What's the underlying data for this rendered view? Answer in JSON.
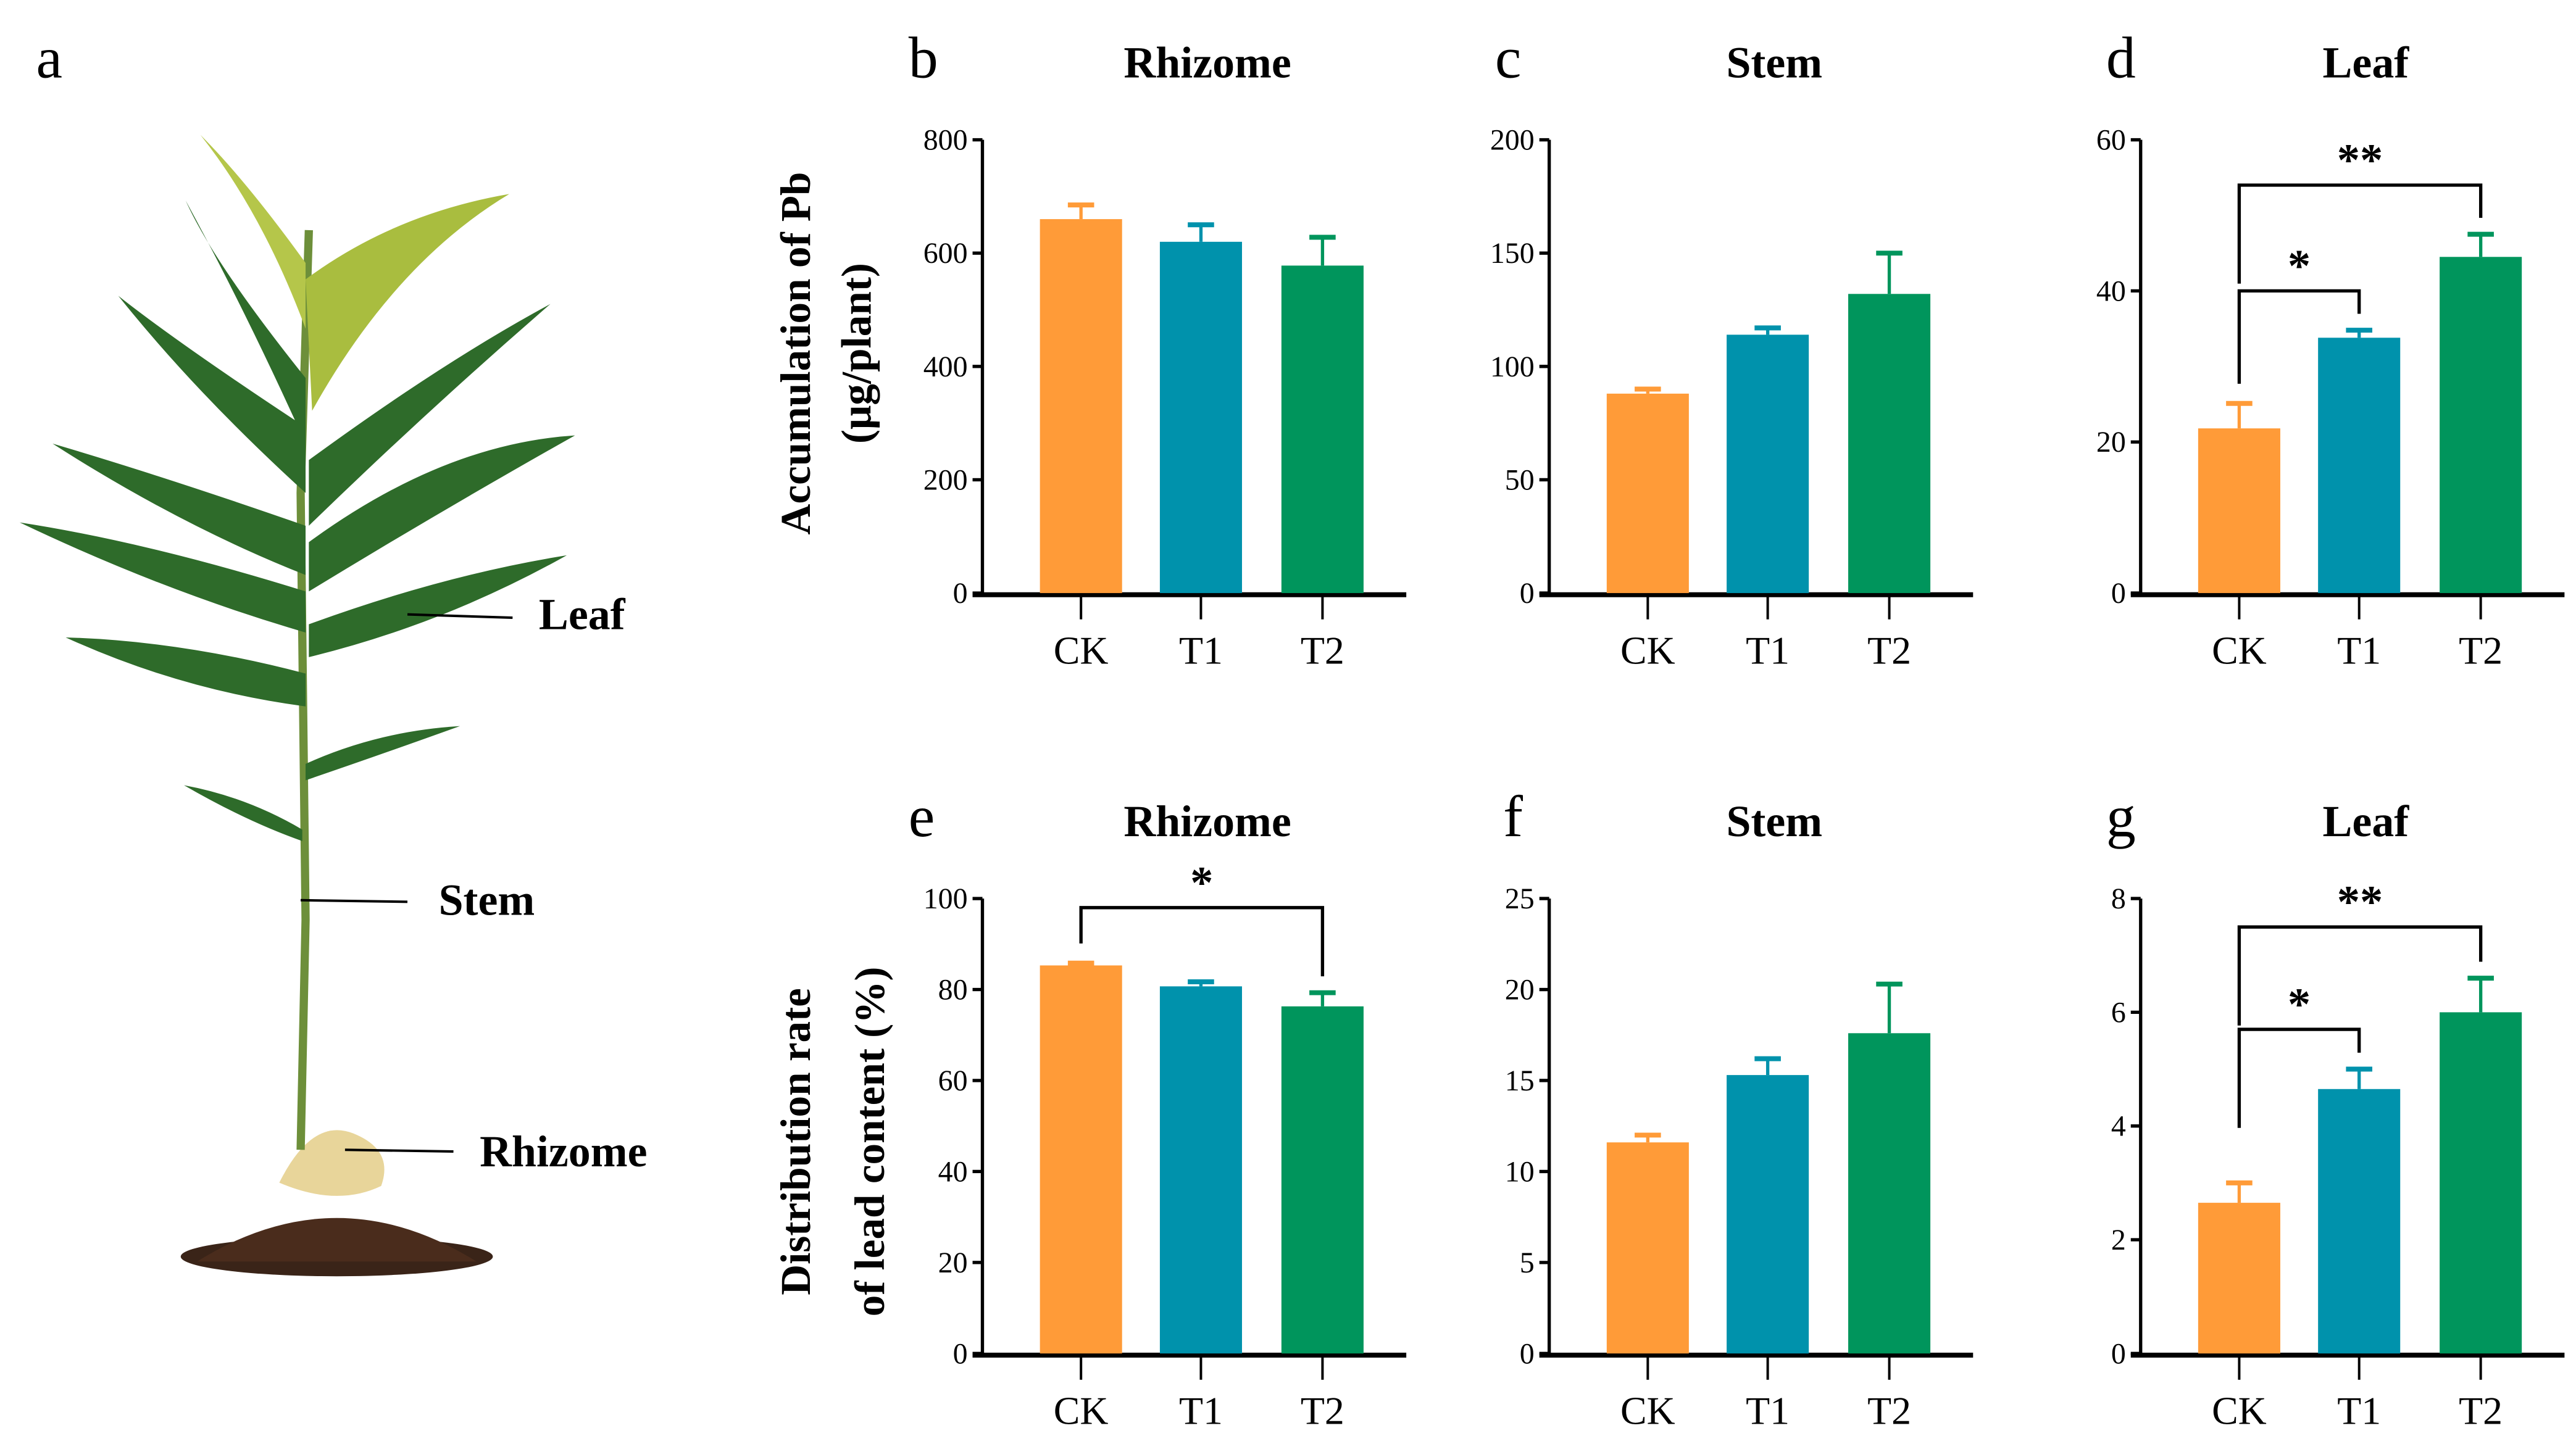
{
  "panel_a": {
    "letter": "a",
    "labels": {
      "leaf": "Leaf",
      "stem": "Stem",
      "rhizome": "Rhizome"
    }
  },
  "ylabels": {
    "top": [
      "Accumulation of Pb",
      "(μg/plant)"
    ],
    "bottom": [
      "Distribution rate",
      "of lead content  (%)"
    ]
  },
  "colors": {
    "CK": "#FF9B38",
    "T1": "#0092AC",
    "T2": "#00955C"
  },
  "chart_data": [
    {
      "id": "b",
      "letter": "b",
      "type": "bar",
      "title": "Rhizome",
      "categories": [
        "CK",
        "T1",
        "T2"
      ],
      "values": [
        660,
        620,
        578
      ],
      "errors": [
        25,
        30,
        50
      ],
      "ylim": [
        0,
        800
      ],
      "yticks": [
        0,
        200,
        400,
        600,
        800
      ],
      "ylabel": "Accumulation of Pb (μg/plant)",
      "sig": []
    },
    {
      "id": "c",
      "letter": "c",
      "type": "bar",
      "title": "Stem",
      "categories": [
        "CK",
        "T1",
        "T2"
      ],
      "values": [
        88,
        114,
        132
      ],
      "errors": [
        2,
        3,
        18
      ],
      "ylim": [
        0,
        200
      ],
      "yticks": [
        0,
        50,
        100,
        150,
        200
      ],
      "ylabel": "",
      "sig": []
    },
    {
      "id": "d",
      "letter": "d",
      "type": "bar",
      "title": "Leaf",
      "categories": [
        "CK",
        "T1",
        "T2"
      ],
      "values": [
        21.8,
        33.8,
        44.5
      ],
      "errors": [
        3.3,
        1,
        3
      ],
      "ylim": [
        0,
        60
      ],
      "yticks": [
        0,
        20,
        40,
        60
      ],
      "ylabel": "",
      "sig": [
        {
          "from": 0,
          "to": 1,
          "label": "*",
          "level": 40
        },
        {
          "from": 0,
          "to": 2,
          "label": "**",
          "level": 54
        }
      ]
    },
    {
      "id": "e",
      "letter": "e",
      "type": "bar",
      "title": "Rhizome",
      "categories": [
        "CK",
        "T1",
        "T2"
      ],
      "values": [
        85.3,
        80.7,
        76.3
      ],
      "errors": [
        0.5,
        1,
        3
      ],
      "ylim": [
        0,
        100
      ],
      "yticks": [
        0,
        20,
        40,
        60,
        80,
        100
      ],
      "ylabel": "Distribution rate of lead content (%)",
      "sig": [
        {
          "from": 0,
          "to": 2,
          "label": "*",
          "level": 98
        }
      ]
    },
    {
      "id": "f",
      "letter": "f",
      "type": "bar",
      "title": "Stem",
      "categories": [
        "CK",
        "T1",
        "T2"
      ],
      "values": [
        11.6,
        15.3,
        17.6
      ],
      "errors": [
        0.4,
        0.9,
        2.7
      ],
      "ylim": [
        0,
        25
      ],
      "yticks": [
        0,
        5,
        10,
        15,
        20,
        25
      ],
      "ylabel": "",
      "sig": []
    },
    {
      "id": "g",
      "letter": "g",
      "type": "bar",
      "title": "Leaf",
      "categories": [
        "CK",
        "T1",
        "T2"
      ],
      "values": [
        2.65,
        4.65,
        6.0
      ],
      "errors": [
        0.35,
        0.35,
        0.6
      ],
      "ylim": [
        0,
        8
      ],
      "yticks": [
        0,
        2,
        4,
        6,
        8
      ],
      "ylabel": "",
      "sig": [
        {
          "from": 0,
          "to": 1,
          "label": "*",
          "level": 5.7
        },
        {
          "from": 0,
          "to": 2,
          "label": "**",
          "level": 7.5
        }
      ]
    }
  ]
}
